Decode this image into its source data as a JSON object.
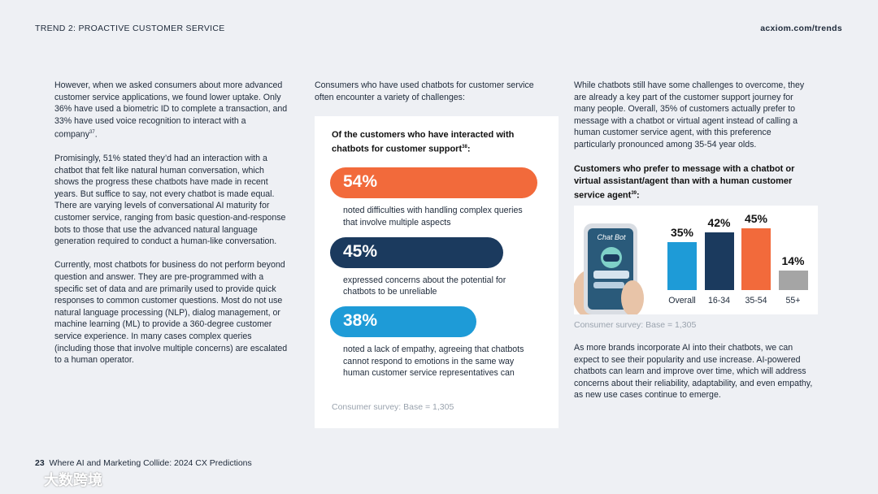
{
  "header": {
    "section": "TREND 2: PROACTIVE CUSTOMER SERVICE",
    "site": "acxiom.com/trends"
  },
  "column1": {
    "paragraphs": [
      {
        "text": "However, when we asked consumers about more advanced customer service applications, we found lower uptake. Only 36% have used a biometric ID to complete a transaction, and 33% have used voice recognition to interact with a company",
        "ref": "37",
        "end": "."
      },
      {
        "text": "Promisingly, 51% stated they’d had an interaction with a chatbot that felt like natural human conversation, which shows the progress these chatbots have made in recent years. But suffice to say, not every chatbot is made equal. There are varying levels of conversational AI maturity for customer service, ranging from basic question-and-response bots to those that use the advanced natural language generation required to conduct a human-like conversation."
      },
      {
        "text": "Currently, most chatbots for business do not perform beyond question and answer. They are pre-programmed with a specific set of data and are primarily used to provide quick responses to common customer questions. Most do not use natural language processing (NLP), dialog management, or machine learning (ML) to provide a 360-degree customer service experience. In many cases complex queries (including those that involve multiple concerns) are escalated to a human operator."
      }
    ]
  },
  "column2": {
    "intro": "Consumers who have used chatbots for customer service often encounter a variety of challenges:",
    "card": {
      "title": "Of the customers who have interacted with chatbots for customer support",
      "ref": "38",
      "end": ":",
      "items": [
        {
          "value": 54,
          "label": "54%",
          "color": "#f26a3b",
          "text": "noted difficulties with handling complex queries that involve multiple aspects"
        },
        {
          "value": 45,
          "label": "45%",
          "color": "#1b3a5e",
          "text": "expressed concerns about the potential for chatbots to be unreliable"
        },
        {
          "value": 38,
          "label": "38%",
          "color": "#1e9bd7",
          "text": "noted a lack of empathy, agreeing that chatbots cannot respond to emotions in the same way human customer service representatives can"
        }
      ],
      "source": "Consumer survey: Base = 1,305"
    }
  },
  "column3": {
    "intro": "While chatbots still have some challenges to overcome, they are already a key part of the customer support journey for many people. Overall, 35% of customers actually prefer to message with a chatbot or virtual agent instead of calling a human customer service agent, with this preference particularly pronounced among 35-54 year olds.",
    "chart": {
      "type": "bar",
      "title": "Customers who prefer to message with a chatbot or virtual assistant/agent than with a human customer service agent",
      "ref": "39",
      "end": ":",
      "categories": [
        "Overall",
        "16-34",
        "35-54",
        "55+"
      ],
      "values": [
        35,
        42,
        45,
        14
      ],
      "value_labels": [
        "35%",
        "42%",
        "45%",
        "14%"
      ],
      "colors": [
        "#1e9bd7",
        "#1b3a5e",
        "#f26a3b",
        "#a5a5a5"
      ],
      "phone_label": "Chat Bot",
      "source": "Consumer survey: Base = 1,305"
    },
    "closing": "As more brands incorporate AI into their chatbots, we can expect to see their popularity and use increase. AI-powered chatbots can learn and improve over time, which will address concerns about their reliability, adaptability, and even empathy, as new use cases continue to emerge."
  },
  "footer": {
    "page": "23",
    "title": "Where AI and Marketing Collide: 2024 CX Predictions"
  },
  "watermark": "大数跨境"
}
